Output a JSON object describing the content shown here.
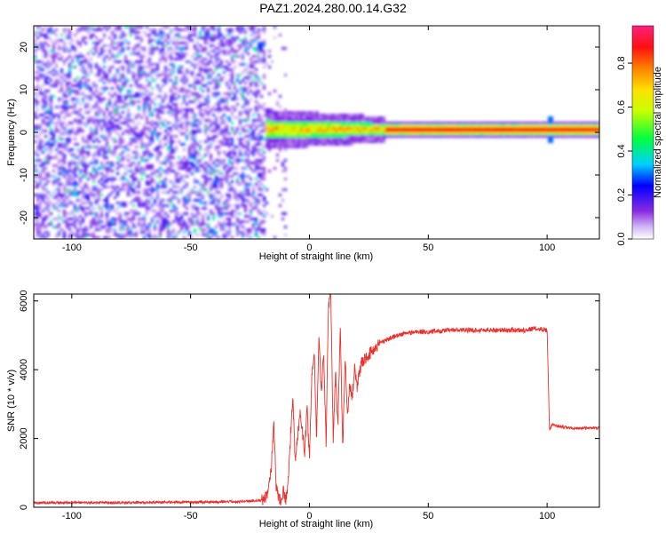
{
  "title": "PAZ1.2024.280.00.14.G32",
  "chart_data": [
    {
      "type": "heatmap",
      "xlabel": "Height of straight line (km)",
      "ylabel": "Frequency (Hz)",
      "xlim": [
        -116,
        122
      ],
      "ylim": [
        -25,
        25
      ],
      "x_ticks": [
        -100,
        -50,
        0,
        50,
        100
      ],
      "x_tick_labels": [
        "-100",
        "-50",
        "0",
        "50",
        "100"
      ],
      "y_ticks": [
        -20,
        -10,
        0,
        10,
        20
      ],
      "y_tick_labels": [
        "-20",
        "-10",
        "0",
        "10",
        "20"
      ],
      "grid": false,
      "colorbar": {
        "label": "Normalized spectral amplitude",
        "range": [
          0,
          0.97
        ],
        "ticks": [
          0.0,
          0.2,
          0.4,
          0.6,
          0.8
        ],
        "tick_labels": [
          "0.0",
          "0.2",
          "0.4",
          "0.6",
          "0.8"
        ],
        "colormap": "rainbow (purple-blue-cyan-green-yellow-orange-red-magenta)"
      },
      "features": {
        "noise_region_x": [
          -116,
          -18
        ],
        "noise_amplitude_range": [
          0.0,
          0.25
        ],
        "transition_x": [
          -22,
          32
        ],
        "signal_band_x": [
          -22,
          122
        ],
        "signal_band_center_hz": 0.7,
        "signal_band_peak_amplitude": 0.9,
        "spike_x": 101
      }
    },
    {
      "type": "line",
      "xlabel": "Height of straight line (km)",
      "ylabel": "SNR (10 * v/v)",
      "xlim": [
        -116,
        122
      ],
      "ylim": [
        0,
        6200
      ],
      "x_ticks": [
        -100,
        -50,
        0,
        50,
        100
      ],
      "x_tick_labels": [
        "-100",
        "-50",
        "0",
        "50",
        "100"
      ],
      "y_ticks": [
        0,
        2000,
        4000,
        6000
      ],
      "y_tick_labels": [
        "0",
        "2000",
        "4000",
        "6000"
      ],
      "grid": false,
      "color": "#e8302c",
      "series": [
        {
          "x": [
            -116,
            -100,
            -80,
            -60,
            -40,
            -25,
            -20,
            -18,
            -16,
            -15,
            -14,
            -13,
            -12,
            -11,
            -10,
            -9,
            -8,
            -7,
            -6,
            -5,
            -4,
            -3,
            -2,
            -1,
            0,
            1,
            2,
            3,
            4,
            5,
            6,
            7,
            8,
            9,
            10,
            11,
            12,
            13,
            14,
            15,
            16,
            17,
            18,
            19,
            20,
            22,
            25,
            28,
            30,
            35,
            40,
            45,
            50,
            60,
            70,
            80,
            90,
            95,
            100,
            100.5,
            101,
            102,
            105,
            110,
            115,
            122
          ],
          "y": [
            130,
            140,
            130,
            150,
            150,
            180,
            200,
            300,
            1200,
            2450,
            600,
            300,
            200,
            500,
            200,
            700,
            2000,
            3300,
            1300,
            2000,
            2800,
            2200,
            1600,
            2900,
            1400,
            3800,
            4600,
            2000,
            5100,
            3200,
            4500,
            1800,
            5900,
            6200,
            2000,
            3900,
            2400,
            5200,
            1700,
            4300,
            2600,
            3600,
            3200,
            4100,
            3500,
            4200,
            4450,
            4650,
            4800,
            4950,
            5050,
            5100,
            5100,
            5150,
            5150,
            5150,
            5150,
            5200,
            5150,
            3800,
            2250,
            2400,
            2350,
            2300,
            2300,
            2300
          ]
        }
      ]
    }
  ]
}
